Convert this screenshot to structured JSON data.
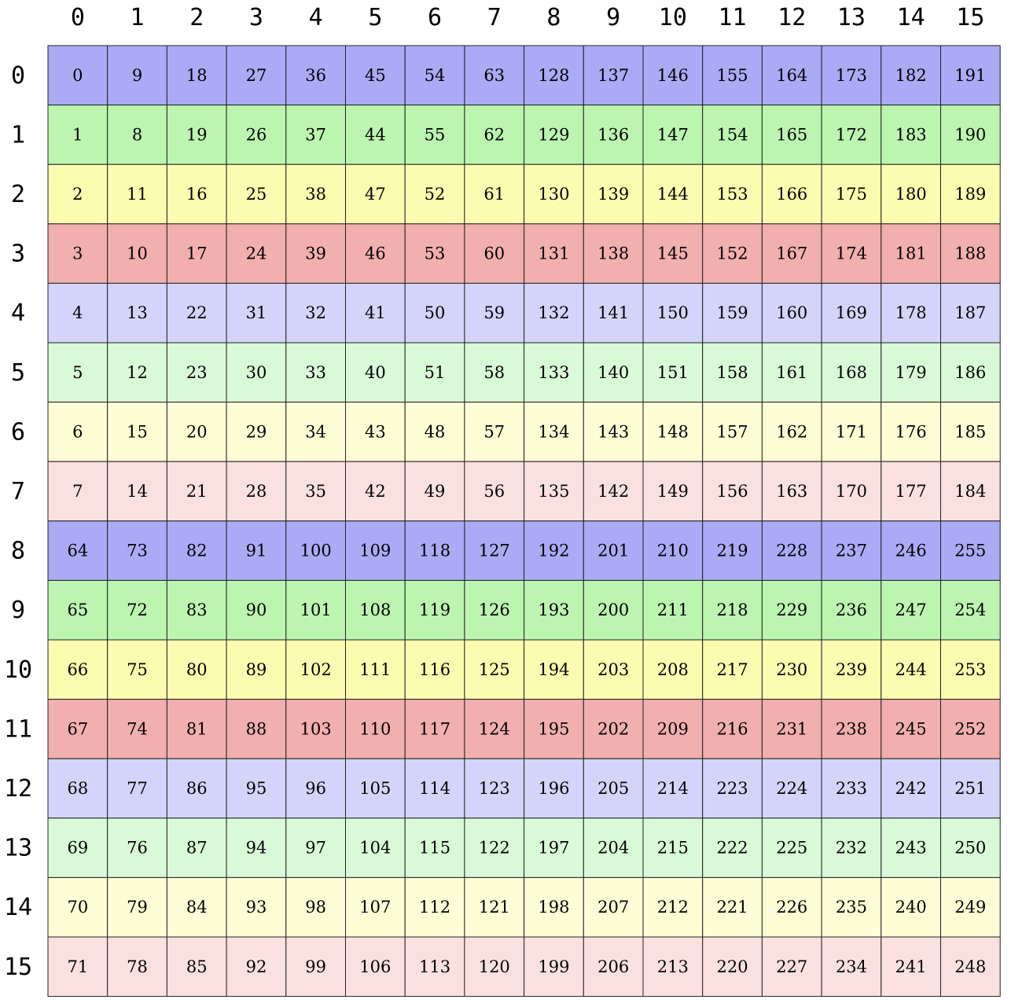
{
  "column_labels": [
    "0",
    "1",
    "2",
    "3",
    "4",
    "5",
    "6",
    "7",
    "8",
    "9",
    "10",
    "11",
    "12",
    "13",
    "14",
    "15"
  ],
  "row_labels": [
    "0",
    "1",
    "2",
    "3",
    "4",
    "5",
    "6",
    "7",
    "8",
    "9",
    "10",
    "11",
    "12",
    "13",
    "14",
    "15"
  ],
  "palette": {
    "blue": "#aaaaf5",
    "green": "#bbf5b0",
    "yellow": "#fcfcb0",
    "red": "#f1afad",
    "light_blue": "#d4d4fb",
    "light_green": "#d9fad7",
    "light_yellow": "#fdfdd6",
    "light_red": "#fbe0e0"
  },
  "grid": [
    [
      0,
      9,
      18,
      27,
      36,
      45,
      54,
      63,
      128,
      137,
      146,
      155,
      164,
      173,
      182,
      191
    ],
    [
      1,
      8,
      19,
      26,
      37,
      44,
      55,
      62,
      129,
      136,
      147,
      154,
      165,
      172,
      183,
      190
    ],
    [
      2,
      11,
      16,
      25,
      38,
      47,
      52,
      61,
      130,
      139,
      144,
      153,
      166,
      175,
      180,
      189
    ],
    [
      3,
      10,
      17,
      24,
      39,
      46,
      53,
      60,
      131,
      138,
      145,
      152,
      167,
      174,
      181,
      188
    ],
    [
      4,
      13,
      22,
      31,
      32,
      41,
      50,
      59,
      132,
      141,
      150,
      159,
      160,
      169,
      178,
      187
    ],
    [
      5,
      12,
      23,
      30,
      33,
      40,
      51,
      58,
      133,
      140,
      151,
      158,
      161,
      168,
      179,
      186
    ],
    [
      6,
      15,
      20,
      29,
      34,
      43,
      48,
      57,
      134,
      143,
      148,
      157,
      162,
      171,
      176,
      185
    ],
    [
      7,
      14,
      21,
      28,
      35,
      42,
      49,
      56,
      135,
      142,
      149,
      156,
      163,
      170,
      177,
      184
    ],
    [
      64,
      73,
      82,
      91,
      100,
      109,
      118,
      127,
      192,
      201,
      210,
      219,
      228,
      237,
      246,
      255
    ],
    [
      65,
      72,
      83,
      90,
      101,
      108,
      119,
      126,
      193,
      200,
      211,
      218,
      229,
      236,
      247,
      254
    ],
    [
      66,
      75,
      80,
      89,
      102,
      111,
      116,
      125,
      194,
      203,
      208,
      217,
      230,
      239,
      244,
      253
    ],
    [
      67,
      74,
      81,
      88,
      103,
      110,
      117,
      124,
      195,
      202,
      209,
      216,
      231,
      238,
      245,
      252
    ],
    [
      68,
      77,
      86,
      95,
      96,
      105,
      114,
      123,
      196,
      205,
      214,
      223,
      224,
      233,
      242,
      251
    ],
    [
      69,
      76,
      87,
      94,
      97,
      104,
      115,
      122,
      197,
      204,
      215,
      222,
      225,
      232,
      243,
      250
    ],
    [
      70,
      79,
      84,
      93,
      98,
      107,
      112,
      121,
      198,
      207,
      212,
      221,
      226,
      235,
      240,
      249
    ],
    [
      71,
      78,
      85,
      92,
      99,
      106,
      113,
      120,
      199,
      206,
      213,
      220,
      227,
      234,
      241,
      248
    ]
  ]
}
